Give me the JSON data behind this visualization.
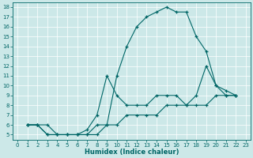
{
  "title": "",
  "xlabel": "Humidex (Indice chaleur)",
  "bg_color": "#cce8e8",
  "line_color": "#006666",
  "grid_color": "#b0d8d8",
  "xlim": [
    -0.5,
    23.5
  ],
  "ylim": [
    4.5,
    18.5
  ],
  "xticks": [
    0,
    1,
    2,
    3,
    4,
    5,
    6,
    7,
    8,
    9,
    10,
    11,
    12,
    13,
    14,
    15,
    16,
    17,
    18,
    19,
    20,
    21,
    22,
    23
  ],
  "yticks": [
    5,
    6,
    7,
    8,
    9,
    10,
    11,
    12,
    13,
    14,
    15,
    16,
    17,
    18
  ],
  "line1_x": [
    1,
    2,
    3,
    4,
    5,
    6,
    7,
    8,
    9,
    10,
    11,
    12,
    13,
    14,
    15,
    16,
    17,
    18,
    19,
    20,
    21,
    22
  ],
  "line1_y": [
    6,
    6,
    5,
    5,
    5,
    5,
    5,
    6,
    6,
    11,
    14,
    16,
    17,
    17.5,
    18,
    17.5,
    17.5,
    15,
    13.5,
    10,
    9.5,
    9
  ],
  "line2_x": [
    1,
    2,
    3,
    4,
    5,
    6,
    7,
    8,
    9,
    10,
    11,
    12,
    13,
    14,
    15,
    16,
    17,
    18,
    19,
    20,
    21,
    22
  ],
  "line2_y": [
    6,
    6,
    6,
    5,
    5,
    5,
    5.5,
    7,
    11,
    9,
    8,
    8,
    8,
    9,
    9,
    9,
    8,
    9,
    12,
    10,
    9,
    9
  ],
  "line3_x": [
    1,
    2,
    3,
    4,
    5,
    6,
    7,
    8,
    9,
    10,
    11,
    12,
    13,
    14,
    15,
    16,
    17,
    18,
    19,
    20,
    21,
    22
  ],
  "line3_y": [
    6,
    6,
    5,
    5,
    5,
    5,
    5,
    5,
    6,
    6,
    7,
    7,
    7,
    7,
    8,
    8,
    8,
    8,
    8,
    9,
    9,
    9
  ]
}
